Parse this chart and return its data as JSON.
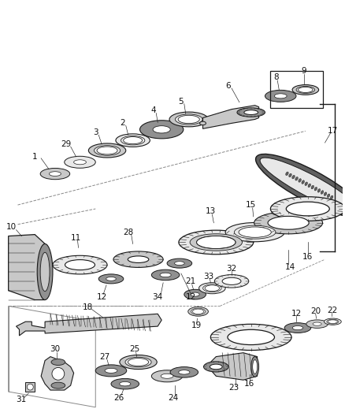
{
  "bg_color": "#ffffff",
  "lc": "#1a1a1a",
  "lw": 0.8,
  "lw_thin": 0.4,
  "lw_thick": 1.2,
  "fs": 7.5,
  "fc_light": "#e8e8e8",
  "fc_med": "#c8c8c8",
  "fc_dark": "#909090",
  "fc_darker": "#606060",
  "fc_chain": "#808080",
  "fc_white": "#ffffff"
}
